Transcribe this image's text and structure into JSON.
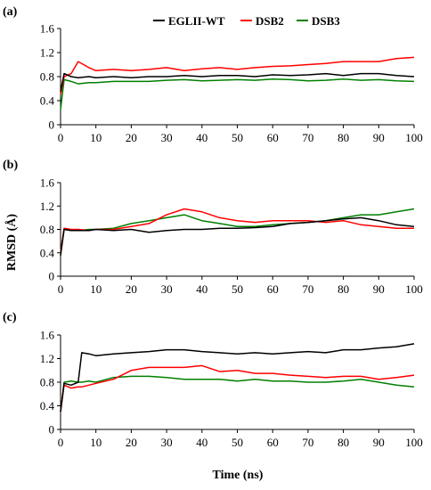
{
  "figure": {
    "ylabel": "RMSD (Å)",
    "xlabel": "Time (ns)"
  },
  "legend": [
    {
      "name": "EGLII-WT",
      "color": "#000000"
    },
    {
      "name": "DSB2",
      "color": "#ff0000"
    },
    {
      "name": "DSB3",
      "color": "#008000"
    }
  ],
  "chart_data": [
    {
      "type": "line",
      "panel_label": "(a)",
      "xlim": [
        0,
        100
      ],
      "ylim": [
        0,
        1.6
      ],
      "xticks": [
        "0",
        "10",
        "20",
        "30",
        "40",
        "50",
        "60",
        "70",
        "80",
        "90",
        "100"
      ],
      "yticks": [
        "0",
        "0.4",
        "0.8",
        "1.2",
        "1.6"
      ],
      "x": [
        0,
        1,
        3,
        5,
        8,
        10,
        15,
        20,
        25,
        30,
        35,
        40,
        45,
        50,
        55,
        60,
        65,
        70,
        75,
        80,
        85,
        90,
        95,
        100
      ],
      "series": [
        {
          "name": "EGLII-WT",
          "color": "#000000",
          "values": [
            0.55,
            0.85,
            0.8,
            0.78,
            0.8,
            0.78,
            0.8,
            0.78,
            0.8,
            0.8,
            0.82,
            0.8,
            0.82,
            0.82,
            0.8,
            0.83,
            0.82,
            0.83,
            0.85,
            0.82,
            0.85,
            0.85,
            0.82,
            0.8
          ]
        },
        {
          "name": "DSB2",
          "color": "#ff0000",
          "values": [
            0.5,
            0.8,
            0.85,
            1.05,
            0.95,
            0.9,
            0.92,
            0.9,
            0.92,
            0.95,
            0.9,
            0.93,
            0.95,
            0.92,
            0.95,
            0.97,
            0.98,
            1.0,
            1.02,
            1.05,
            1.05,
            1.05,
            1.1,
            1.12
          ]
        },
        {
          "name": "DSB3",
          "color": "#008000",
          "values": [
            0.25,
            0.75,
            0.72,
            0.68,
            0.7,
            0.7,
            0.72,
            0.72,
            0.72,
            0.74,
            0.75,
            0.73,
            0.74,
            0.75,
            0.74,
            0.76,
            0.75,
            0.73,
            0.74,
            0.76,
            0.74,
            0.75,
            0.73,
            0.72
          ]
        }
      ]
    },
    {
      "type": "line",
      "panel_label": "(b)",
      "xlim": [
        0,
        100
      ],
      "ylim": [
        0,
        1.6
      ],
      "xticks": [
        "0",
        "10",
        "20",
        "30",
        "40",
        "50",
        "60",
        "70",
        "80",
        "90",
        "100"
      ],
      "yticks": [
        "0",
        "0.4",
        "0.8",
        "1.2",
        "1.6"
      ],
      "x": [
        0,
        1,
        3,
        5,
        8,
        10,
        15,
        20,
        25,
        30,
        35,
        40,
        45,
        50,
        55,
        60,
        65,
        70,
        75,
        80,
        85,
        90,
        95,
        100
      ],
      "series": [
        {
          "name": "EGLII-WT",
          "color": "#000000",
          "values": [
            0.35,
            0.8,
            0.78,
            0.78,
            0.78,
            0.8,
            0.78,
            0.8,
            0.75,
            0.78,
            0.8,
            0.8,
            0.82,
            0.82,
            0.83,
            0.85,
            0.9,
            0.92,
            0.95,
            0.98,
            1.0,
            0.95,
            0.88,
            0.85
          ]
        },
        {
          "name": "DSB2",
          "color": "#ff0000",
          "values": [
            0.4,
            0.82,
            0.8,
            0.8,
            0.78,
            0.8,
            0.8,
            0.85,
            0.9,
            1.05,
            1.15,
            1.1,
            1.0,
            0.95,
            0.92,
            0.95,
            0.95,
            0.95,
            0.92,
            0.95,
            0.88,
            0.85,
            0.82,
            0.82
          ]
        },
        {
          "name": "DSB3",
          "color": "#008000",
          "values": [
            0.4,
            0.8,
            0.78,
            0.78,
            0.8,
            0.8,
            0.82,
            0.9,
            0.95,
            1.0,
            1.05,
            0.95,
            0.9,
            0.85,
            0.85,
            0.88,
            0.9,
            0.92,
            0.95,
            1.0,
            1.05,
            1.05,
            1.1,
            1.15
          ]
        }
      ]
    },
    {
      "type": "line",
      "panel_label": "(c)",
      "xlim": [
        0,
        100
      ],
      "ylim": [
        0,
        1.6
      ],
      "xticks": [
        "0",
        "10",
        "20",
        "30",
        "40",
        "50",
        "60",
        "70",
        "80",
        "90",
        "100"
      ],
      "yticks": [
        "0",
        "0.4",
        "0.8",
        "1.2",
        "1.6"
      ],
      "x": [
        0,
        1,
        3,
        5,
        6,
        8,
        10,
        15,
        20,
        25,
        30,
        35,
        40,
        45,
        50,
        55,
        60,
        65,
        70,
        75,
        80,
        85,
        90,
        95,
        100
      ],
      "series": [
        {
          "name": "EGLII-WT",
          "color": "#000000",
          "values": [
            0.3,
            0.78,
            0.75,
            0.8,
            1.3,
            1.28,
            1.25,
            1.28,
            1.3,
            1.32,
            1.35,
            1.35,
            1.32,
            1.3,
            1.28,
            1.3,
            1.28,
            1.3,
            1.32,
            1.3,
            1.35,
            1.35,
            1.38,
            1.4,
            1.45
          ]
        },
        {
          "name": "DSB2",
          "color": "#ff0000",
          "values": [
            0.3,
            0.75,
            0.7,
            0.72,
            0.72,
            0.75,
            0.78,
            0.85,
            1.0,
            1.05,
            1.05,
            1.05,
            1.08,
            0.98,
            1.0,
            0.95,
            0.95,
            0.92,
            0.9,
            0.88,
            0.9,
            0.9,
            0.85,
            0.88,
            0.92
          ]
        },
        {
          "name": "DSB3",
          "color": "#008000",
          "values": [
            0.3,
            0.8,
            0.82,
            0.8,
            0.8,
            0.82,
            0.8,
            0.88,
            0.9,
            0.9,
            0.88,
            0.85,
            0.85,
            0.85,
            0.82,
            0.85,
            0.82,
            0.82,
            0.8,
            0.8,
            0.82,
            0.85,
            0.8,
            0.75,
            0.72
          ]
        }
      ]
    }
  ]
}
